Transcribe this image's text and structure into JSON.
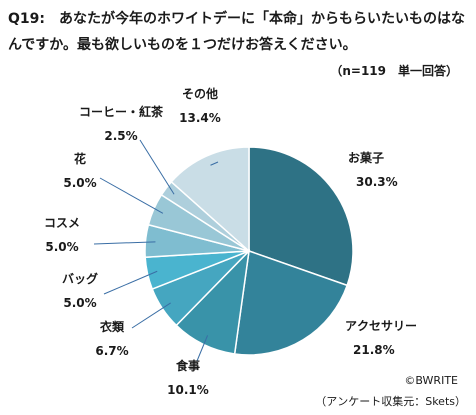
{
  "header": {
    "title": "Q19:　あなたが今年のホワイトデーに「本命」からもらいたいものはなんですか。最も欲しいものを１つだけお答えください。",
    "note": "（n=119　単一回答）"
  },
  "footer": {
    "copyright": "©BWRITE",
    "source": "（アンケート収集元：Skets）"
  },
  "chart_data": {
    "type": "pie",
    "title": "",
    "categories": [
      "お菓子",
      "アクセサリー",
      "食事",
      "衣類",
      "バッグ",
      "コスメ",
      "花",
      "コーヒー・紅茶",
      "その他"
    ],
    "values": [
      30.3,
      21.8,
      10.1,
      6.7,
      5.0,
      5.0,
      5.0,
      2.5,
      13.4
    ],
    "labels": [
      "30.3%",
      "21.8%",
      "10.1%",
      "6.7%",
      "5.0%",
      "5.0%",
      "5.0%",
      "2.5%",
      "13.4%"
    ],
    "colors": [
      "#2e7285",
      "#33839a",
      "#3993a9",
      "#45a6c0",
      "#4ab4cf",
      "#7fbdd0",
      "#99c7d6",
      "#aecfdc",
      "#c9dde6"
    ],
    "start": "12 o'clock",
    "direction": "clockwise"
  }
}
